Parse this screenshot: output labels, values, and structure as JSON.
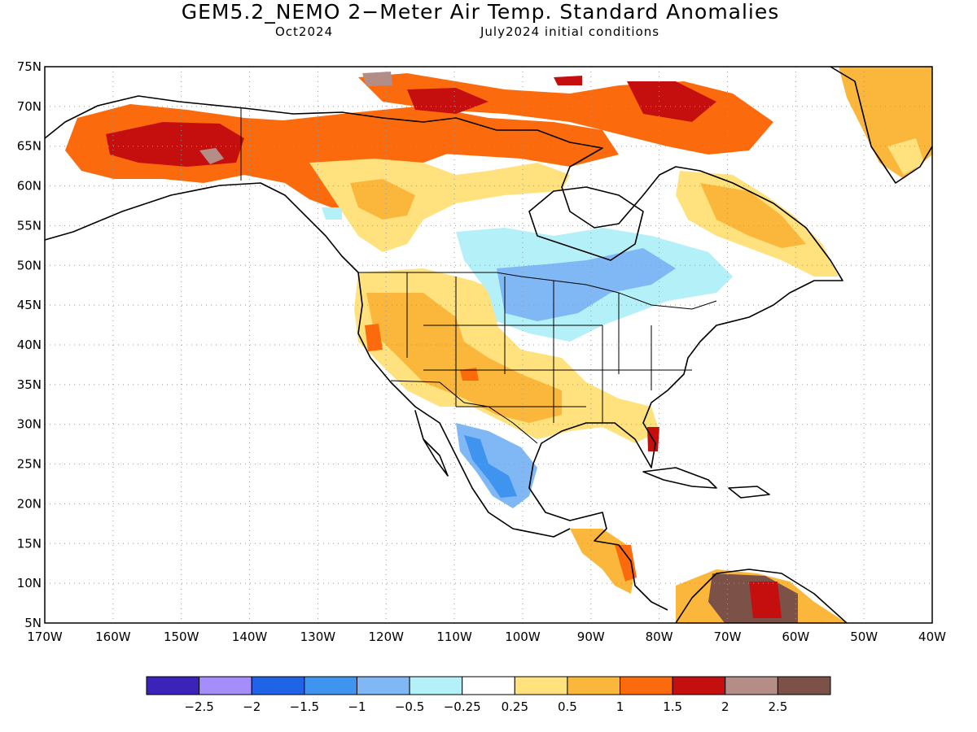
{
  "title": "GEM5.2_NEMO 2−Meter Air Temp. Standard Anomalies",
  "subtitle_left": "Oct2024",
  "subtitle_right": "July2024 initial conditions",
  "map": {
    "lat_range": [
      5,
      75
    ],
    "lon_range": [
      -170,
      -40
    ],
    "lat_labels": [
      "75N",
      "70N",
      "65N",
      "60N",
      "55N",
      "50N",
      "45N",
      "40N",
      "35N",
      "30N",
      "25N",
      "20N",
      "15N",
      "10N",
      "5N"
    ],
    "lon_labels": [
      "170W",
      "160W",
      "150W",
      "140W",
      "130W",
      "120W",
      "110W",
      "100W",
      "90W",
      "80W",
      "70W",
      "60W",
      "50W",
      "40W"
    ],
    "gridlines": "dotted"
  },
  "colorbar": {
    "colors": [
      "#3b22b8",
      "#a58dfc",
      "#1f63e6",
      "#3f94f0",
      "#7fb8f5",
      "#b4f0f8",
      "#ffffff",
      "#ffe27d",
      "#fbb73c",
      "#fb6b0d",
      "#c50f0f",
      "#b48e86",
      "#7b5148"
    ],
    "tick_labels": [
      "−2.5",
      "−2",
      "−1.5",
      "−1",
      "−0.5",
      "−0.25",
      "0.25",
      "0.5",
      "1",
      "1.5",
      "2",
      "2.5"
    ]
  },
  "colors": {
    "outline": "#000000",
    "grid": "#9a9a9a"
  }
}
